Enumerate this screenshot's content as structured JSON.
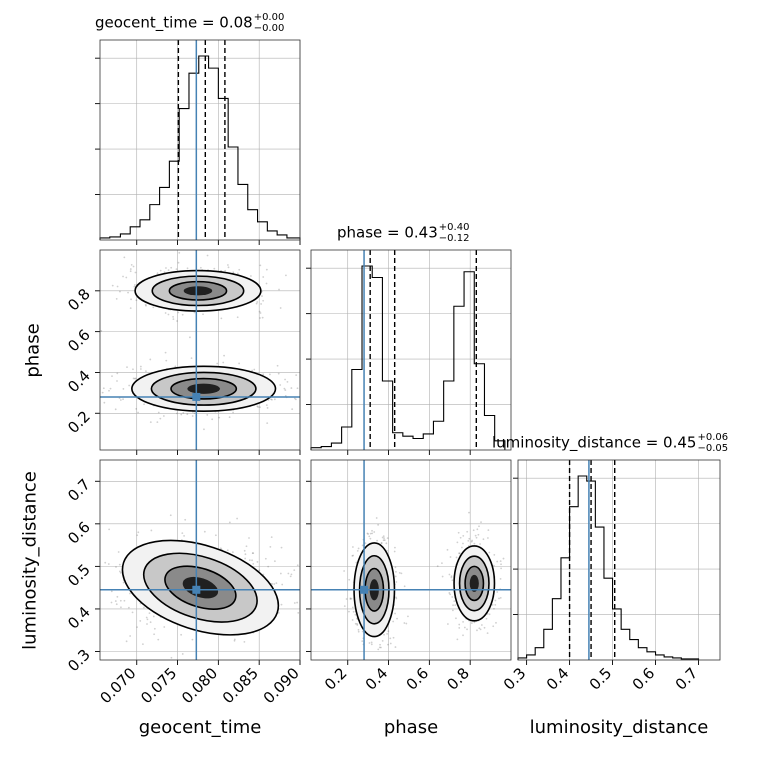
{
  "chart_data": {
    "type": "corner",
    "parameters": [
      "geocent_time",
      "phase",
      "luminosity_distance"
    ],
    "truths": {
      "geocent_time": 0.0773,
      "phase": 0.28,
      "luminosity_distance": 0.445
    },
    "axes": {
      "geocent_time": {
        "range": [
          0.0655,
          0.09
        ],
        "ticks": [
          0.07,
          0.075,
          0.08,
          0.085,
          0.09
        ],
        "tick_labels": [
          "0.070",
          "0.075",
          "0.080",
          "0.085",
          "0.090"
        ]
      },
      "phase": {
        "range": [
          0.02,
          1.0
        ],
        "ticks": [
          0.2,
          0.4,
          0.6,
          0.8
        ],
        "tick_labels": [
          "0.2",
          "0.4",
          "0.6",
          "0.8"
        ]
      },
      "luminosity_distance": {
        "range": [
          0.28,
          0.75
        ],
        "ticks": [
          0.3,
          0.4,
          0.5,
          0.6,
          0.7
        ],
        "tick_labels": [
          "0.3",
          "0.4",
          "0.5",
          "0.6",
          "0.7"
        ]
      }
    },
    "titles": [
      {
        "param": "geocent_time",
        "text": "geocent_time = 0.08",
        "plus": "+0.00",
        "minus": "−0.00"
      },
      {
        "param": "phase",
        "text": "phase = 0.43",
        "plus": "+0.40",
        "minus": "−0.12"
      },
      {
        "param": "luminosity_distance",
        "text": "luminosity_distance = 0.45",
        "plus": "+0.06",
        "minus": "−0.05"
      }
    ],
    "quantiles": {
      "geocent_time": [
        0.0751,
        0.0784,
        0.0808
      ],
      "phase": [
        0.31,
        0.43,
        0.83
      ],
      "luminosity_distance": [
        0.4,
        0.45,
        0.505
      ]
    },
    "histograms": {
      "geocent_time": {
        "edges": [
          0.0655,
          0.0667,
          0.068,
          0.0692,
          0.0704,
          0.0716,
          0.0728,
          0.074,
          0.0752,
          0.0764,
          0.0776,
          0.0788,
          0.08,
          0.0812,
          0.0824,
          0.0836,
          0.0848,
          0.086,
          0.0872,
          0.0884,
          0.09
        ],
        "counts": [
          2,
          3,
          6,
          13,
          20,
          35,
          52,
          78,
          130,
          165,
          182,
          170,
          140,
          92,
          55,
          30,
          18,
          9,
          5,
          2
        ]
      },
      "phase": {
        "edges": [
          0.02,
          0.07,
          0.12,
          0.17,
          0.22,
          0.27,
          0.32,
          0.37,
          0.42,
          0.47,
          0.52,
          0.57,
          0.62,
          0.67,
          0.72,
          0.77,
          0.82,
          0.87,
          0.92,
          0.97
        ],
        "counts": [
          2,
          3,
          6,
          20,
          70,
          160,
          150,
          60,
          15,
          12,
          10,
          14,
          25,
          60,
          125,
          155,
          75,
          30,
          8
        ]
      },
      "luminosity_distance": {
        "edges": [
          0.28,
          0.3,
          0.32,
          0.34,
          0.36,
          0.38,
          0.4,
          0.42,
          0.44,
          0.46,
          0.48,
          0.5,
          0.52,
          0.54,
          0.56,
          0.58,
          0.6,
          0.62,
          0.64,
          0.66,
          0.68,
          0.7
        ],
        "counts": [
          2,
          5,
          12,
          30,
          60,
          100,
          150,
          180,
          175,
          130,
          80,
          50,
          30,
          20,
          12,
          8,
          5,
          3,
          2,
          1,
          1
        ]
      }
    },
    "modes": {
      "geocent_time-phase": [
        {
          "x": 0.0775,
          "y": 0.8,
          "sx": 0.0035,
          "sy": 0.045
        },
        {
          "x": 0.0782,
          "y": 0.32,
          "sx": 0.004,
          "sy": 0.05
        }
      ],
      "geocent_time-luminosity_distance": [
        {
          "x": 0.0778,
          "y": 0.45,
          "sx": 0.0045,
          "sy": 0.045
        }
      ],
      "phase-luminosity_distance": [
        {
          "x": 0.33,
          "y": 0.445,
          "sx": 0.045,
          "sy": 0.05
        },
        {
          "x": 0.82,
          "y": 0.46,
          "sx": 0.045,
          "sy": 0.04
        }
      ]
    },
    "grid": true,
    "truth_color": "#4682b4",
    "hist_color": "#000000"
  }
}
